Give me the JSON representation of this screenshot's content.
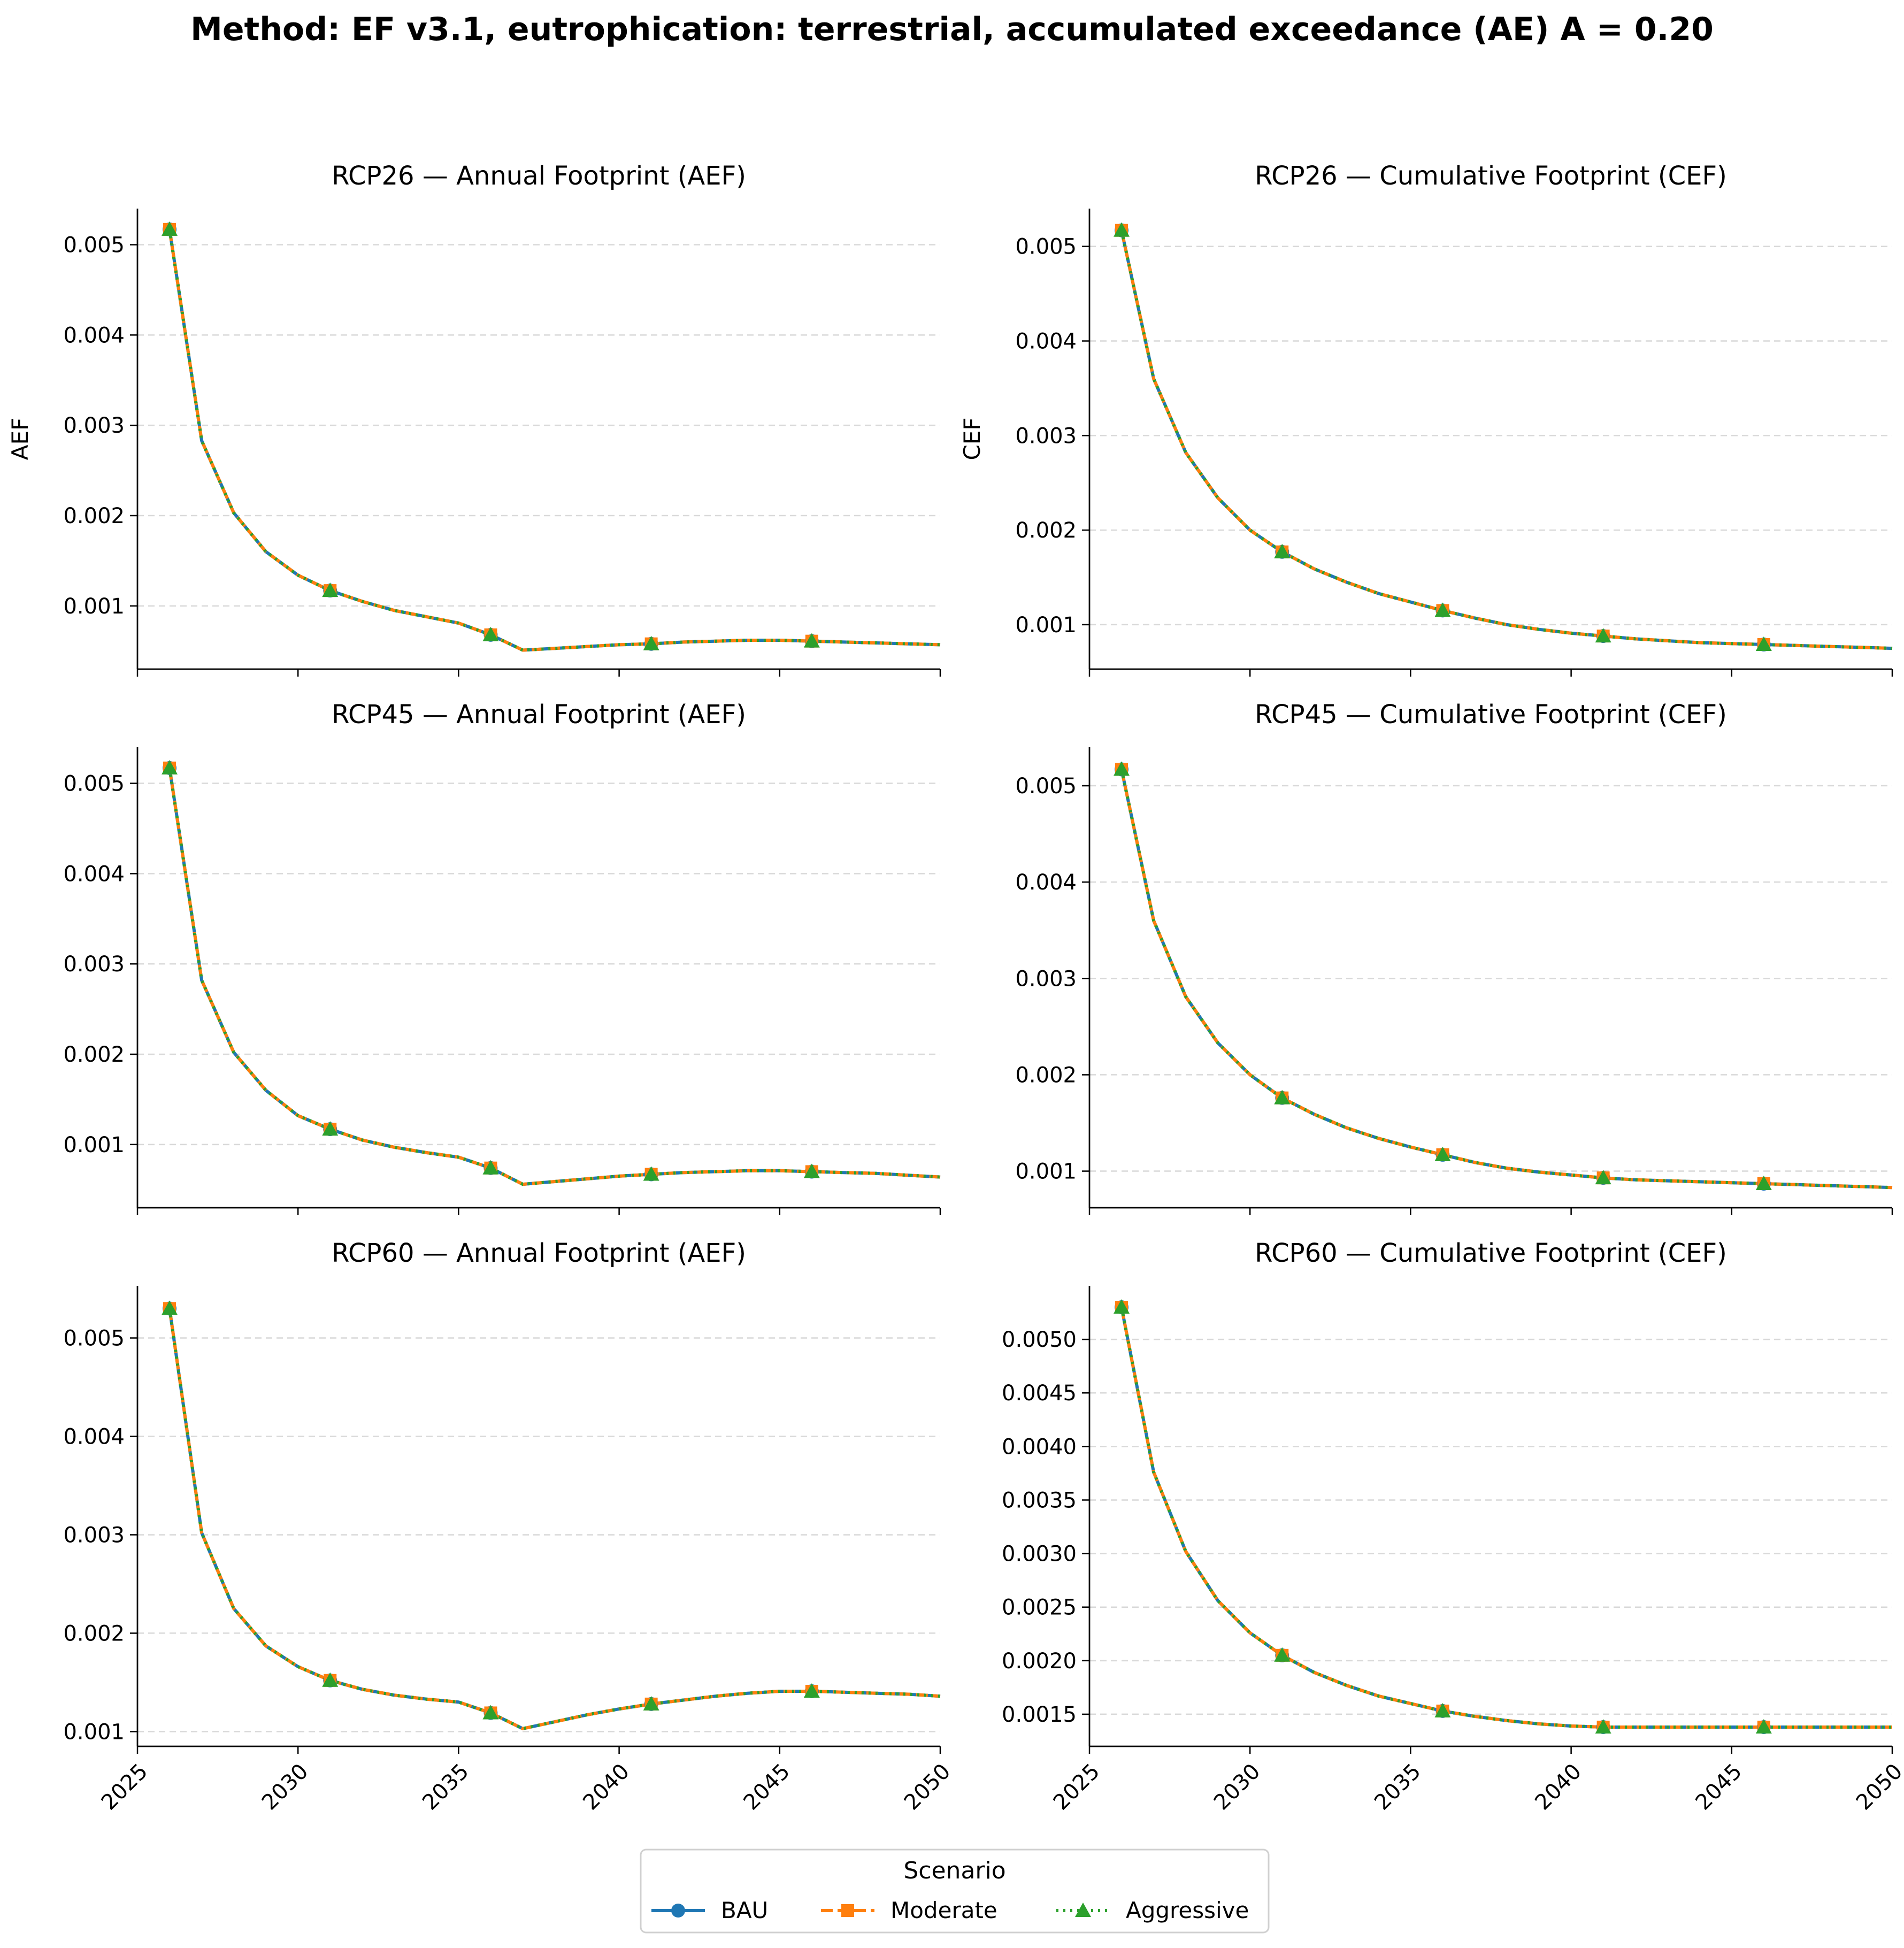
{
  "title": "Method: EF v3.1, eutrophication: terrestrial, accumulated exceedance (AE) A = 0.20",
  "legend": {
    "title": "Scenario",
    "placement": "bottom-center",
    "entries": [
      {
        "label": "BAU",
        "color": "#1f77b4",
        "marker": "circle",
        "linestyle": "solid"
      },
      {
        "label": "Moderate",
        "color": "#ff7f0e",
        "marker": "square",
        "linestyle": "dashed"
      },
      {
        "label": "Aggressive",
        "color": "#2ca02c",
        "marker": "triangle",
        "linestyle": "dotted"
      }
    ]
  },
  "chart_data": [
    {
      "type": "line",
      "title": "RCP26 — Annual Footprint (AEF)",
      "xlabel": "",
      "ylabel": "AEF",
      "xlim": [
        2025,
        2050
      ],
      "ylim": [
        0.0003,
        0.0054
      ],
      "xticks": [
        2025,
        2030,
        2035,
        2040,
        2045,
        2050
      ],
      "xtick_labels_visible": false,
      "yticks": [
        0.001,
        0.002,
        0.003,
        0.004,
        0.005
      ],
      "ytick_labels": [
        "0.001",
        "0.002",
        "0.003",
        "0.004",
        "0.005"
      ],
      "grid": "y-dashed",
      "x": [
        2026,
        2027,
        2028,
        2029,
        2030,
        2031,
        2032,
        2033,
        2034,
        2035,
        2036,
        2037,
        2038,
        2039,
        2040,
        2041,
        2042,
        2043,
        2044,
        2045,
        2046,
        2047,
        2048,
        2049,
        2050
      ],
      "series": [
        {
          "name": "BAU",
          "values": [
            0.00517,
            0.00283,
            0.00203,
            0.0016,
            0.00134,
            0.00117,
            0.00105,
            0.00095,
            0.00088,
            0.00081,
            0.00068,
            0.00051,
            0.00053,
            0.00055,
            0.00057,
            0.00058,
            0.0006,
            0.00061,
            0.00062,
            0.00062,
            0.00061,
            0.0006,
            0.00059,
            0.00058,
            0.00057
          ]
        },
        {
          "name": "Moderate",
          "values": [
            0.00517,
            0.00283,
            0.00203,
            0.0016,
            0.00134,
            0.00117,
            0.00105,
            0.00095,
            0.00088,
            0.00081,
            0.00068,
            0.00051,
            0.00053,
            0.00055,
            0.00057,
            0.00058,
            0.0006,
            0.00061,
            0.00062,
            0.00062,
            0.00061,
            0.0006,
            0.00059,
            0.00058,
            0.00057
          ]
        },
        {
          "name": "Aggressive",
          "values": [
            0.00517,
            0.00283,
            0.00203,
            0.0016,
            0.00134,
            0.00117,
            0.00105,
            0.00095,
            0.00088,
            0.00081,
            0.00068,
            0.00051,
            0.00053,
            0.00055,
            0.00057,
            0.00058,
            0.0006,
            0.00061,
            0.00062,
            0.00062,
            0.00061,
            0.0006,
            0.00059,
            0.00058,
            0.00057
          ]
        }
      ]
    },
    {
      "type": "line",
      "title": "RCP26 — Cumulative Footprint (CEF)",
      "xlabel": "",
      "ylabel": "CEF",
      "xlim": [
        2025,
        2050
      ],
      "ylim": [
        0.00053,
        0.0054
      ],
      "xticks": [
        2025,
        2030,
        2035,
        2040,
        2045,
        2050
      ],
      "xtick_labels_visible": false,
      "yticks": [
        0.001,
        0.002,
        0.003,
        0.004,
        0.005
      ],
      "ytick_labels": [
        "0.001",
        "0.002",
        "0.003",
        "0.004",
        "0.005"
      ],
      "grid": "y-dashed",
      "x": [
        2026,
        2027,
        2028,
        2029,
        2030,
        2031,
        2032,
        2033,
        2034,
        2035,
        2036,
        2037,
        2038,
        2039,
        2040,
        2041,
        2042,
        2043,
        2044,
        2045,
        2046,
        2047,
        2048,
        2049,
        2050
      ],
      "series": [
        {
          "name": "BAU",
          "values": [
            0.00517,
            0.0036,
            0.00282,
            0.00234,
            0.002,
            0.00177,
            0.00159,
            0.00145,
            0.00133,
            0.00124,
            0.00115,
            0.00107,
            0.001,
            0.00095,
            0.00091,
            0.00088,
            0.00085,
            0.00083,
            0.00081,
            0.0008,
            0.00079,
            0.00078,
            0.00077,
            0.00076,
            0.00075
          ]
        },
        {
          "name": "Moderate",
          "values": [
            0.00517,
            0.0036,
            0.00282,
            0.00234,
            0.002,
            0.00177,
            0.00159,
            0.00145,
            0.00133,
            0.00124,
            0.00115,
            0.00107,
            0.001,
            0.00095,
            0.00091,
            0.00088,
            0.00085,
            0.00083,
            0.00081,
            0.0008,
            0.00079,
            0.00078,
            0.00077,
            0.00076,
            0.00075
          ]
        },
        {
          "name": "Aggressive",
          "values": [
            0.00517,
            0.0036,
            0.00282,
            0.00234,
            0.002,
            0.00177,
            0.00159,
            0.00145,
            0.00133,
            0.00124,
            0.00115,
            0.00107,
            0.001,
            0.00095,
            0.00091,
            0.00088,
            0.00085,
            0.00083,
            0.00081,
            0.0008,
            0.00079,
            0.00078,
            0.00077,
            0.00076,
            0.00075
          ]
        }
      ]
    },
    {
      "type": "line",
      "title": "RCP45 — Annual Footprint (AEF)",
      "xlabel": "",
      "ylabel": "",
      "xlim": [
        2025,
        2050
      ],
      "ylim": [
        0.0003,
        0.0054
      ],
      "xticks": [
        2025,
        2030,
        2035,
        2040,
        2045,
        2050
      ],
      "xtick_labels_visible": false,
      "yticks": [
        0.001,
        0.002,
        0.003,
        0.004,
        0.005
      ],
      "ytick_labels": [
        "0.001",
        "0.002",
        "0.003",
        "0.004",
        "0.005"
      ],
      "grid": "y-dashed",
      "x": [
        2026,
        2027,
        2028,
        2029,
        2030,
        2031,
        2032,
        2033,
        2034,
        2035,
        2036,
        2037,
        2038,
        2039,
        2040,
        2041,
        2042,
        2043,
        2044,
        2045,
        2046,
        2047,
        2048,
        2049,
        2050
      ],
      "series": [
        {
          "name": "BAU",
          "values": [
            0.00517,
            0.00282,
            0.00202,
            0.0016,
            0.00132,
            0.00117,
            0.00105,
            0.00097,
            0.00091,
            0.00086,
            0.00074,
            0.00056,
            0.00059,
            0.00062,
            0.00065,
            0.00067,
            0.00069,
            0.0007,
            0.00071,
            0.00071,
            0.0007,
            0.00069,
            0.00068,
            0.00066,
            0.00064
          ]
        },
        {
          "name": "Moderate",
          "values": [
            0.00517,
            0.00282,
            0.00202,
            0.0016,
            0.00132,
            0.00117,
            0.00105,
            0.00097,
            0.00091,
            0.00086,
            0.00074,
            0.00056,
            0.00059,
            0.00062,
            0.00065,
            0.00067,
            0.00069,
            0.0007,
            0.00071,
            0.00071,
            0.0007,
            0.00069,
            0.00068,
            0.00066,
            0.00064
          ]
        },
        {
          "name": "Aggressive",
          "values": [
            0.00517,
            0.00282,
            0.00202,
            0.0016,
            0.00132,
            0.00117,
            0.00105,
            0.00097,
            0.00091,
            0.00086,
            0.00074,
            0.00056,
            0.00059,
            0.00062,
            0.00065,
            0.00067,
            0.00069,
            0.0007,
            0.00071,
            0.00071,
            0.0007,
            0.00069,
            0.00068,
            0.00066,
            0.00064
          ]
        }
      ]
    },
    {
      "type": "line",
      "title": "RCP45 — Cumulative Footprint (CEF)",
      "xlabel": "",
      "ylabel": "",
      "xlim": [
        2025,
        2050
      ],
      "ylim": [
        0.00062,
        0.0054
      ],
      "xticks": [
        2025,
        2030,
        2035,
        2040,
        2045,
        2050
      ],
      "xtick_labels_visible": false,
      "yticks": [
        0.001,
        0.002,
        0.003,
        0.004,
        0.005
      ],
      "ytick_labels": [
        "0.001",
        "0.002",
        "0.003",
        "0.004",
        "0.005"
      ],
      "grid": "y-dashed",
      "x": [
        2026,
        2027,
        2028,
        2029,
        2030,
        2031,
        2032,
        2033,
        2034,
        2035,
        2036,
        2037,
        2038,
        2039,
        2040,
        2041,
        2042,
        2043,
        2044,
        2045,
        2046,
        2047,
        2048,
        2049,
        2050
      ],
      "series": [
        {
          "name": "BAU",
          "values": [
            0.00517,
            0.0036,
            0.00281,
            0.00233,
            0.002,
            0.00176,
            0.00159,
            0.00145,
            0.00134,
            0.00125,
            0.00117,
            0.00109,
            0.00103,
            0.00099,
            0.00096,
            0.00093,
            0.00091,
            0.0009,
            0.00089,
            0.00088,
            0.00087,
            0.00086,
            0.00085,
            0.00084,
            0.00083
          ]
        },
        {
          "name": "Moderate",
          "values": [
            0.00517,
            0.0036,
            0.00281,
            0.00233,
            0.002,
            0.00176,
            0.00159,
            0.00145,
            0.00134,
            0.00125,
            0.00117,
            0.00109,
            0.00103,
            0.00099,
            0.00096,
            0.00093,
            0.00091,
            0.0009,
            0.00089,
            0.00088,
            0.00087,
            0.00086,
            0.00085,
            0.00084,
            0.00083
          ]
        },
        {
          "name": "Aggressive",
          "values": [
            0.00517,
            0.0036,
            0.00281,
            0.00233,
            0.002,
            0.00176,
            0.00159,
            0.00145,
            0.00134,
            0.00125,
            0.00117,
            0.00109,
            0.00103,
            0.00099,
            0.00096,
            0.00093,
            0.00091,
            0.0009,
            0.00089,
            0.00088,
            0.00087,
            0.00086,
            0.00085,
            0.00084,
            0.00083
          ]
        }
      ]
    },
    {
      "type": "line",
      "title": "RCP60 — Annual Footprint (AEF)",
      "xlabel": "",
      "ylabel": "",
      "xlim": [
        2025,
        2050
      ],
      "ylim": [
        0.00085,
        0.00553
      ],
      "xticks": [
        2025,
        2030,
        2035,
        2040,
        2045,
        2050
      ],
      "xtick_labels_visible": true,
      "yticks": [
        0.001,
        0.002,
        0.003,
        0.004,
        0.005
      ],
      "ytick_labels": [
        "0.001",
        "0.002",
        "0.003",
        "0.004",
        "0.005"
      ],
      "grid": "y-dashed",
      "x": [
        2026,
        2027,
        2028,
        2029,
        2030,
        2031,
        2032,
        2033,
        2034,
        2035,
        2036,
        2037,
        2038,
        2039,
        2040,
        2041,
        2042,
        2043,
        2044,
        2045,
        2046,
        2047,
        2048,
        2049,
        2050
      ],
      "series": [
        {
          "name": "BAU",
          "values": [
            0.0053,
            0.00302,
            0.00225,
            0.00187,
            0.00166,
            0.00152,
            0.00143,
            0.00137,
            0.00133,
            0.0013,
            0.00119,
            0.00103,
            0.0011,
            0.00117,
            0.00123,
            0.00128,
            0.00132,
            0.00136,
            0.00139,
            0.00141,
            0.00141,
            0.0014,
            0.00139,
            0.00138,
            0.00136
          ]
        },
        {
          "name": "Moderate",
          "values": [
            0.0053,
            0.00302,
            0.00225,
            0.00187,
            0.00166,
            0.00152,
            0.00143,
            0.00137,
            0.00133,
            0.0013,
            0.00119,
            0.00103,
            0.0011,
            0.00117,
            0.00123,
            0.00128,
            0.00132,
            0.00136,
            0.00139,
            0.00141,
            0.00141,
            0.0014,
            0.00139,
            0.00138,
            0.00136
          ]
        },
        {
          "name": "Aggressive",
          "values": [
            0.0053,
            0.00302,
            0.00225,
            0.00187,
            0.00166,
            0.00152,
            0.00143,
            0.00137,
            0.00133,
            0.0013,
            0.00119,
            0.00103,
            0.0011,
            0.00117,
            0.00123,
            0.00128,
            0.00132,
            0.00136,
            0.00139,
            0.00141,
            0.00141,
            0.0014,
            0.00139,
            0.00138,
            0.00136
          ]
        }
      ]
    },
    {
      "type": "line",
      "title": "RCP60 — Cumulative Footprint (CEF)",
      "xlabel": "",
      "ylabel": "",
      "xlim": [
        2025,
        2050
      ],
      "ylim": [
        0.0012,
        0.0055
      ],
      "xticks": [
        2025,
        2030,
        2035,
        2040,
        2045,
        2050
      ],
      "xtick_labels_visible": true,
      "yticks": [
        0.0015,
        0.002,
        0.0025,
        0.003,
        0.0035,
        0.004,
        0.0045,
        0.005
      ],
      "ytick_labels": [
        "0.0015",
        "0.0020",
        "0.0025",
        "0.0030",
        "0.0035",
        "0.0040",
        "0.0045",
        "0.0050"
      ],
      "grid": "y-dashed",
      "x": [
        2026,
        2027,
        2028,
        2029,
        2030,
        2031,
        2032,
        2033,
        2034,
        2035,
        2036,
        2037,
        2038,
        2039,
        2040,
        2041,
        2042,
        2043,
        2044,
        2045,
        2046,
        2047,
        2048,
        2049,
        2050
      ],
      "series": [
        {
          "name": "BAU",
          "values": [
            0.0053,
            0.00376,
            0.00302,
            0.00256,
            0.00226,
            0.00205,
            0.00189,
            0.00177,
            0.00167,
            0.0016,
            0.00153,
            0.00148,
            0.00144,
            0.00141,
            0.00139,
            0.00138,
            0.00138,
            0.00138,
            0.00138,
            0.00138,
            0.00138,
            0.00138,
            0.00138,
            0.00138,
            0.00138
          ]
        },
        {
          "name": "Moderate",
          "values": [
            0.0053,
            0.00376,
            0.00302,
            0.00256,
            0.00226,
            0.00205,
            0.00189,
            0.00177,
            0.00167,
            0.0016,
            0.00153,
            0.00148,
            0.00144,
            0.00141,
            0.00139,
            0.00138,
            0.00138,
            0.00138,
            0.00138,
            0.00138,
            0.00138,
            0.00138,
            0.00138,
            0.00138,
            0.00138
          ]
        },
        {
          "name": "Aggressive",
          "values": [
            0.0053,
            0.00376,
            0.00302,
            0.00256,
            0.00226,
            0.00205,
            0.00189,
            0.00177,
            0.00167,
            0.0016,
            0.00153,
            0.00148,
            0.00144,
            0.00141,
            0.00139,
            0.00138,
            0.00138,
            0.00138,
            0.00138,
            0.00138,
            0.00138,
            0.00138,
            0.00138,
            0.00138,
            0.00138
          ]
        }
      ]
    }
  ]
}
